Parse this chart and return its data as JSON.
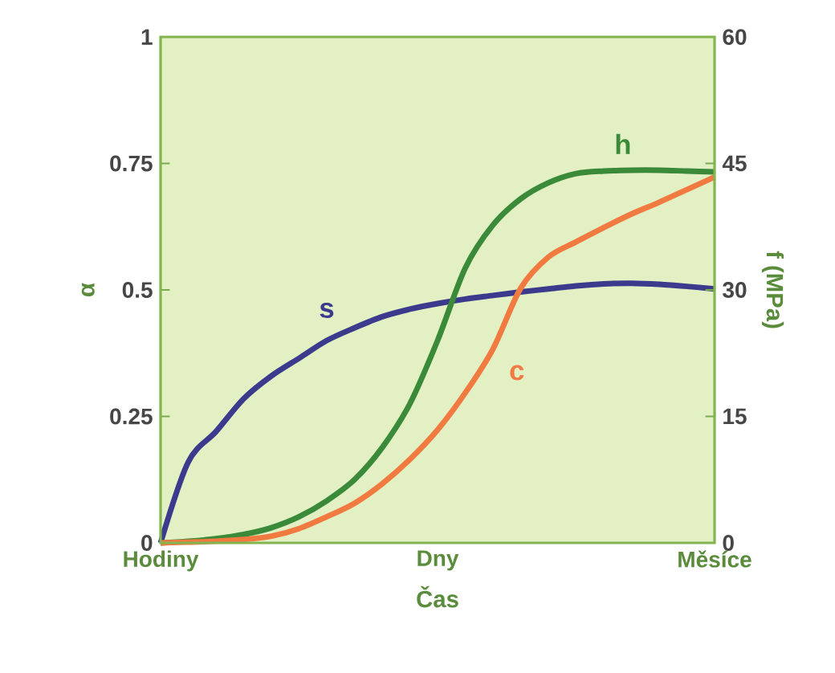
{
  "chart_data": {
    "type": "line",
    "xlabel": "Čas",
    "ylabel": "α",
    "y2label": "f (MPa)",
    "categories": [
      "Hodiny",
      null,
      null,
      null,
      null,
      null,
      null,
      null,
      null,
      null,
      "Dny",
      null,
      null,
      null,
      null,
      null,
      null,
      null,
      null,
      null,
      "Měsíce"
    ],
    "ylim": [
      0,
      1
    ],
    "yticks": [
      0,
      0.25,
      0.5,
      0.75,
      1
    ],
    "y2lim": [
      0,
      60
    ],
    "y2ticks": [
      0,
      15,
      30,
      45,
      60
    ],
    "series": [
      {
        "name": "s",
        "color": "#3b3a8c",
        "values": [
          0,
          0.16,
          0.22,
          0.285,
          0.33,
          0.365,
          0.4,
          0.425,
          0.447,
          0.462,
          0.473,
          0.482,
          0.489,
          0.496,
          0.502,
          0.508,
          0.512,
          0.513,
          0.511,
          0.507,
          0.502
        ]
      },
      {
        "name": "h",
        "color": "#3a8a3a",
        "axis": "y2",
        "values": [
          0,
          0.2,
          0.5,
          1.0,
          1.8,
          3.1,
          5.0,
          7.5,
          11.3,
          16.5,
          24,
          32.6,
          37.7,
          40.8,
          42.7,
          43.8,
          44.1,
          44.2,
          44.2,
          44.1,
          44.0
        ]
      },
      {
        "name": "c",
        "color": "#f07a40",
        "axis": "y2",
        "values": [
          0,
          0.1,
          0.2,
          0.4,
          0.8,
          1.7,
          3.1,
          4.7,
          7.0,
          9.9,
          13.4,
          17.8,
          23.0,
          30.2,
          33.9,
          35.7,
          37.4,
          39.0,
          40.4,
          41.9,
          43.4
        ]
      }
    ]
  }
}
